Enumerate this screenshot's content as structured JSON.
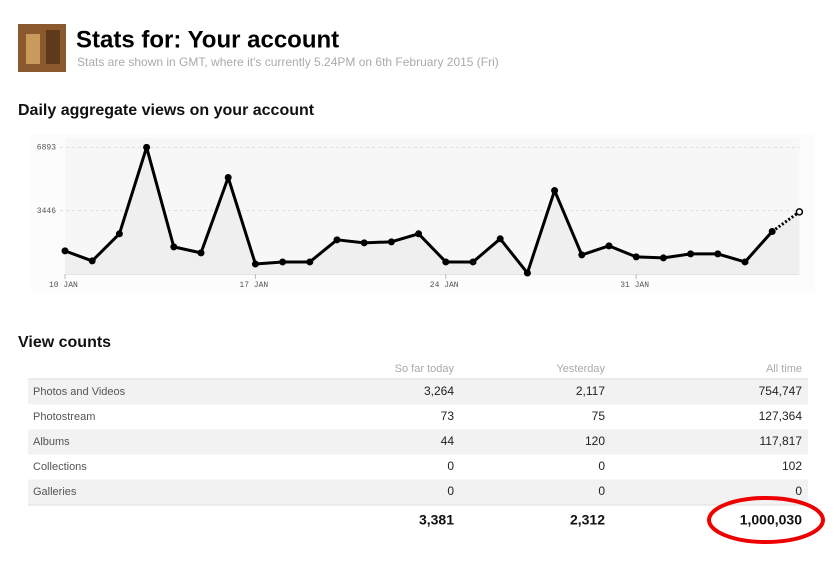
{
  "header": {
    "title": "Stats for: Your account",
    "subtitle": "Stats are shown in GMT, where it's currently 5.24PM on 6th February 2015 (Fri)"
  },
  "chart_data": {
    "type": "line",
    "title": "Daily aggregate views on your account",
    "categories": [
      "10 JAN",
      null,
      null,
      null,
      null,
      null,
      null,
      "17 JAN",
      null,
      null,
      null,
      null,
      null,
      null,
      "24 JAN",
      null,
      null,
      null,
      null,
      null,
      null,
      "31 JAN",
      null,
      null,
      null,
      null,
      null,
      null
    ],
    "series": [
      {
        "color": "#000000",
        "values": [
          1258,
          711,
          2188,
          6893,
          1477,
          1149,
          5251,
          547,
          656,
          656,
          1860,
          1696,
          1750,
          2188,
          656,
          656,
          1915,
          55,
          4540,
          1039,
          1532,
          930,
          875,
          1094,
          1094,
          656,
          2312,
          3381
        ]
      }
    ],
    "ylim": [
      0,
      7400
    ],
    "yticks": [
      3446,
      6893
    ],
    "grid": true
  },
  "table": {
    "title": "View counts",
    "columns": [
      "So far today",
      "Yesterday",
      "All time"
    ],
    "rows": [
      [
        "Photos and Videos",
        "3,264",
        "2,117",
        "754,747"
      ],
      [
        "Photostream",
        "73",
        "75",
        "127,364"
      ],
      [
        "Albums",
        "44",
        "120",
        "117,817"
      ],
      [
        "Collections",
        "0",
        "0",
        "102"
      ],
      [
        "Galleries",
        "0",
        "0",
        "0"
      ]
    ],
    "totals": [
      "3,381",
      "2,312",
      "1,000,030"
    ]
  }
}
